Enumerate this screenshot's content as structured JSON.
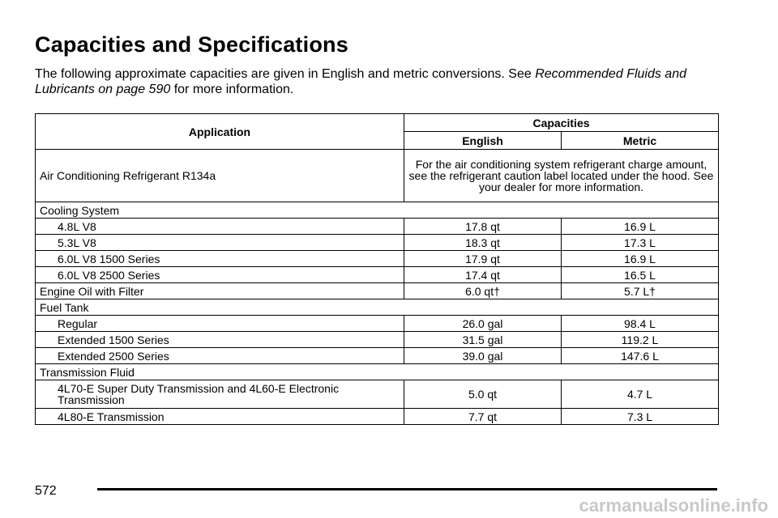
{
  "header": {
    "title": "Capacities and Specifications",
    "intro": {
      "text": "The following approximate capacities are given in English and metric conversions. See",
      "link": "Recommended Fluids and Lubricants on page 590",
      "after": "for more information."
    }
  },
  "table": {
    "headers": {
      "application": "Application",
      "capacities": "Capacities",
      "english": "English",
      "metric": "Metric"
    },
    "rows": [
      {
        "application": "Air Conditioning Refrigerant R134a",
        "note": "For the air conditioning system refrigerant charge amount, see the refrigerant caution label located under the hood. See your dealer for more information."
      },
      {
        "application": "Cooling System",
        "items": [
          {
            "application": "4.8L V8",
            "english": "17.8 qt",
            "metric": "16.9 L"
          },
          {
            "application": "5.3L V8",
            "english": "18.3 qt",
            "metric": "17.3 L"
          },
          {
            "application": "6.0L V8 1500 Series",
            "english": "17.9 qt",
            "metric": "16.9 L"
          },
          {
            "application": "6.0L V8 2500 Series",
            "english": "17.4 qt",
            "metric": "16.5 L"
          }
        ]
      },
      {
        "application": "Engine Oil with Filter",
        "english": "6.0 qt†",
        "metric": "5.7 L†"
      },
      {
        "application": "Fuel Tank",
        "items": [
          {
            "application": "Regular",
            "english": "26.0 gal",
            "metric": "98.4 L"
          },
          {
            "application": "Extended 1500 Series",
            "english": "31.5 gal",
            "metric": "119.2 L"
          },
          {
            "application": "Extended 2500 Series",
            "english": "39.0 gal",
            "metric": "147.6 L"
          }
        ]
      },
      {
        "application": "Transmission Fluid",
        "items": [
          {
            "application": "4L70-E Super Duty Transmission and 4L60-E Electronic Transmission",
            "english": "5.0 qt",
            "metric": "4.7 L"
          },
          {
            "application": "4L80-E Transmission",
            "english": "7.7 qt",
            "metric": "7.3 L"
          }
        ]
      }
    ]
  },
  "footer": {
    "page": "572",
    "watermark": "carmanualsonline.info"
  }
}
